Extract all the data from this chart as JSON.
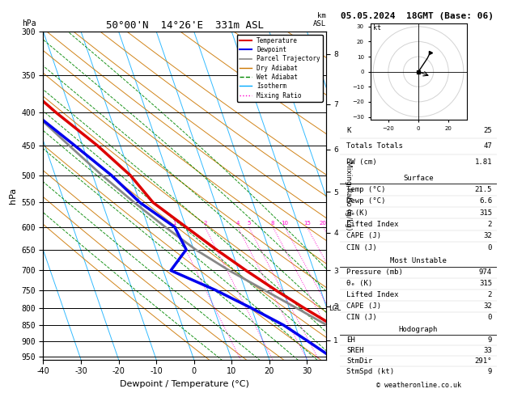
{
  "title_left": "50°00'N  14°26'E  331m ASL",
  "title_right": "05.05.2024  18GMT (Base: 06)",
  "xlabel": "Dewpoint / Temperature (°C)",
  "ylabel_left": "hPa",
  "bg_color": "#ffffff",
  "pressure_levels": [
    300,
    350,
    400,
    450,
    500,
    550,
    600,
    650,
    700,
    750,
    800,
    850,
    900,
    950
  ],
  "pressure_ticks": [
    300,
    350,
    400,
    450,
    500,
    550,
    600,
    650,
    700,
    750,
    800,
    850,
    900,
    950
  ],
  "temp_range": [
    -40,
    35
  ],
  "temp_ticks": [
    -40,
    -30,
    -20,
    -10,
    0,
    10,
    20,
    30
  ],
  "p_min": 300,
  "p_max": 960,
  "skew_amount": 30,
  "temperature_profile": {
    "pressure": [
      950,
      900,
      850,
      800,
      750,
      700,
      650,
      600,
      550,
      500,
      450,
      400,
      350,
      300
    ],
    "temp": [
      21.5,
      15.0,
      10.0,
      4.0,
      -2.0,
      -8.0,
      -14.0,
      -20.0,
      -26.5,
      -30.0,
      -36.0,
      -44.0,
      -52.0,
      -58.0
    ]
  },
  "dewpoint_profile": {
    "pressure": [
      950,
      900,
      850,
      800,
      750,
      700,
      650,
      600,
      550,
      500,
      450,
      400,
      350,
      300
    ],
    "temp": [
      6.6,
      2.0,
      -3.0,
      -10.0,
      -18.0,
      -28.0,
      -22.0,
      -23.0,
      -30.0,
      -35.0,
      -42.0,
      -50.0,
      -56.0,
      -63.0
    ]
  },
  "parcel_profile": {
    "pressure": [
      950,
      900,
      850,
      800,
      750,
      700,
      650,
      600,
      550,
      500,
      450,
      400,
      350,
      300
    ],
    "temp": [
      21.5,
      14.5,
      8.5,
      2.0,
      -5.0,
      -12.5,
      -19.5,
      -25.5,
      -31.5,
      -37.5,
      -43.5,
      -50.0,
      -56.5,
      -63.0
    ]
  },
  "dry_adiabats_theta": [
    250,
    260,
    270,
    280,
    290,
    300,
    310,
    320,
    330,
    340,
    350,
    360,
    380,
    400,
    420
  ],
  "dry_adiabat_color": "#cc7700",
  "dry_adiabat_lw": 0.7,
  "wet_adiabats_T0": [
    -20,
    -10,
    0,
    5,
    10,
    15,
    20,
    25,
    30
  ],
  "wet_adiabat_color": "#008800",
  "wet_adiabat_lw": 0.7,
  "isotherm_temps": [
    -60,
    -50,
    -40,
    -30,
    -20,
    -10,
    0,
    10,
    20,
    30,
    40
  ],
  "isotherm_color": "#00aaff",
  "isotherm_lw": 0.7,
  "mixing_ratio_vals": [
    1,
    2,
    4,
    5,
    8,
    10,
    15,
    20,
    25
  ],
  "mixing_ratio_color": "#ff00cc",
  "mixing_ratio_lw": 0.7,
  "temp_color": "#dd0000",
  "dewp_color": "#0000ee",
  "parcel_color": "#888888",
  "temp_lw": 2.5,
  "dewp_lw": 2.5,
  "parcel_lw": 2.0,
  "lcl_pressure": 800,
  "km_ticks": [
    1,
    2,
    3,
    4,
    5,
    6,
    7,
    8
  ],
  "km_pressures": [
    896,
    795,
    700,
    612,
    530,
    456,
    388,
    325
  ],
  "legend_items": [
    {
      "label": "Temperature",
      "color": "#dd0000",
      "lw": 1.5,
      "ls": "-"
    },
    {
      "label": "Dewpoint",
      "color": "#0000ee",
      "lw": 1.5,
      "ls": "-"
    },
    {
      "label": "Parcel Trajectory",
      "color": "#888888",
      "lw": 1.2,
      "ls": "-"
    },
    {
      "label": "Dry Adiabat",
      "color": "#cc7700",
      "lw": 1.0,
      "ls": "-"
    },
    {
      "label": "Wet Adiabat",
      "color": "#008800",
      "lw": 1.0,
      "ls": "--"
    },
    {
      "label": "Isotherm",
      "color": "#00aaff",
      "lw": 1.0,
      "ls": "-"
    },
    {
      "label": "Mixing Ratio",
      "color": "#ff00cc",
      "lw": 1.0,
      "ls": ":"
    }
  ],
  "right_panel": {
    "k_index": 25,
    "totals_totals": 47,
    "pw_cm": 1.81,
    "surface": {
      "temp_c": 21.5,
      "dewp_c": 6.6,
      "theta_e_K": 315,
      "lifted_index": 2,
      "cape_j": 32,
      "cin_j": 0
    },
    "most_unstable": {
      "pressure_mb": 974,
      "theta_e_K": 315,
      "lifted_index": 2,
      "cape_j": 32,
      "cin_j": 0
    },
    "hodograph": {
      "EH": 9,
      "SREH": 33,
      "StmDir": 291,
      "StmSpd_kt": 9
    }
  },
  "copyright": "© weatheronline.co.uk"
}
